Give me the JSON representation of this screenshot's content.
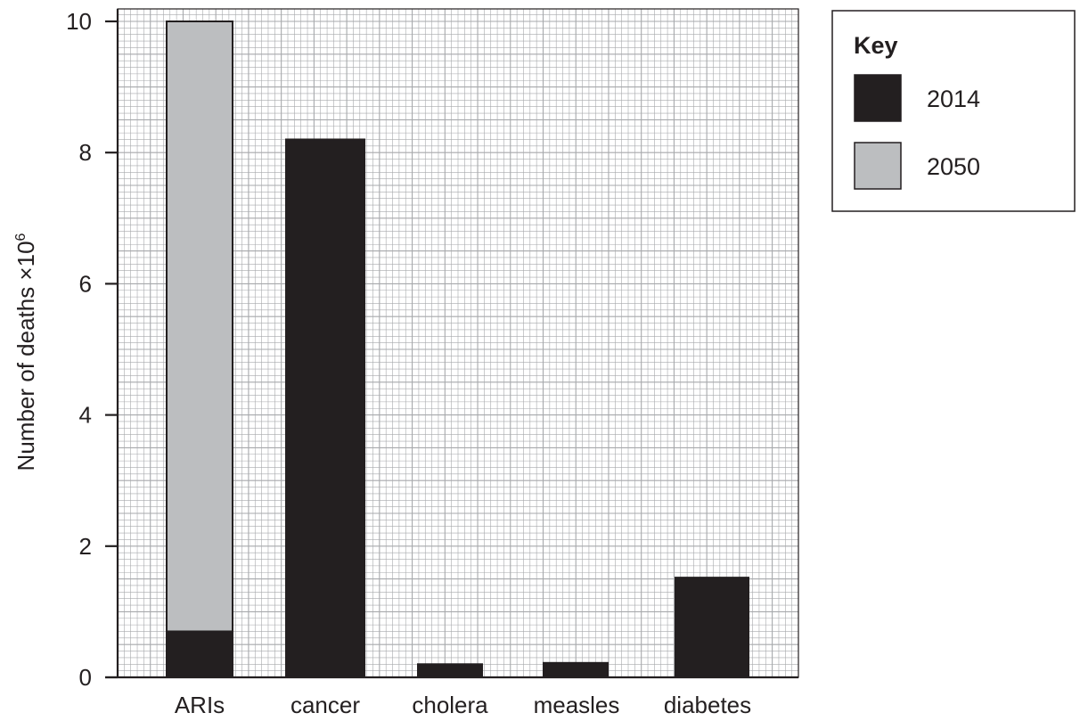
{
  "chart_data": {
    "type": "bar",
    "stacked": true,
    "categories": [
      "ARIs",
      "cancer",
      "cholera",
      "measles",
      "diabetes"
    ],
    "series": [
      {
        "name": "2014",
        "color": "#231f20",
        "values": [
          0.7,
          8.2,
          0.2,
          0.22,
          1.52
        ]
      },
      {
        "name": "2050",
        "color": "#bcbec0",
        "values": [
          9.3,
          null,
          null,
          null,
          null
        ]
      }
    ],
    "ylabel": "Number of deaths ×",
    "ylabel_superscript": "6",
    "ylabel_base": "10",
    "xlabel": "",
    "ylim": [
      0,
      10
    ],
    "yticks": [
      "0",
      "2",
      "4",
      "6",
      "8",
      "10"
    ],
    "grid": true,
    "legend": {
      "title": "Key",
      "placement": "top-right outside"
    }
  }
}
